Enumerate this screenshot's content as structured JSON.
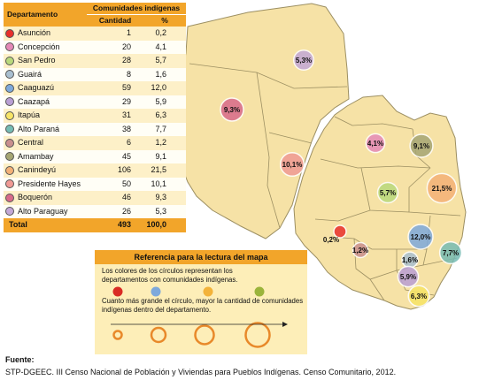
{
  "table": {
    "col_department": "Departamento",
    "col_group": "Comunidades indígenas",
    "col_quantity": "Cantidad",
    "col_percent": "%",
    "rows": [
      {
        "name": "Asunción",
        "cantidad": "1",
        "pct": "0,2",
        "color": "#e8302b"
      },
      {
        "name": "Concepción",
        "cantidad": "20",
        "pct": "4,1",
        "color": "#e58ab8"
      },
      {
        "name": "San Pedro",
        "cantidad": "28",
        "pct": "5,7",
        "color": "#b9d97c"
      },
      {
        "name": "Guairá",
        "cantidad": "8",
        "pct": "1,6",
        "color": "#a9bfd0"
      },
      {
        "name": "Caaguazú",
        "cantidad": "59",
        "pct": "12,0",
        "color": "#7ea9db"
      },
      {
        "name": "Caazapá",
        "cantidad": "29",
        "pct": "5,9",
        "color": "#b99fd4"
      },
      {
        "name": "Itapúa",
        "cantidad": "31",
        "pct": "6,3",
        "color": "#f7e466"
      },
      {
        "name": "Alto Paraná",
        "cantidad": "38",
        "pct": "7,7",
        "color": "#76bcb4"
      },
      {
        "name": "Central",
        "cantidad": "6",
        "pct": "1,2",
        "color": "#c98f8e"
      },
      {
        "name": "Amambay",
        "cantidad": "45",
        "pct": "9,1",
        "color": "#a6a674"
      },
      {
        "name": "Canindeyú",
        "cantidad": "106",
        "pct": "21,5",
        "color": "#f4b177"
      },
      {
        "name": "Presidente Hayes",
        "cantidad": "50",
        "pct": "10,1",
        "color": "#f09a94"
      },
      {
        "name": "Boquerón",
        "cantidad": "46",
        "pct": "9,3",
        "color": "#d86a8a"
      },
      {
        "name": "Alto Paraguay",
        "cantidad": "26",
        "pct": "5,3",
        "color": "#c3a8d7"
      }
    ],
    "total": {
      "name": "Total",
      "cantidad": "493",
      "pct": "100,0"
    }
  },
  "map": {
    "land_color": "#f6e2a6",
    "border_color": "#9c8f62",
    "markers": [
      {
        "label": "5,3%",
        "dept": "Alto Paraguay",
        "value": 5.3,
        "color": "#c3a8d7"
      },
      {
        "label": "9,3%",
        "dept": "Boquerón",
        "value": 9.3,
        "color": "#d86a8a"
      },
      {
        "label": "10,1%",
        "dept": "Presidente Hayes",
        "value": 10.1,
        "color": "#f09a94"
      },
      {
        "label": "4,1%",
        "dept": "Concepción",
        "value": 4.1,
        "color": "#e58ab8"
      },
      {
        "label": "9,1%",
        "dept": "Amambay",
        "value": 9.1,
        "color": "#a6a674"
      },
      {
        "label": "5,7%",
        "dept": "San Pedro",
        "value": 5.7,
        "color": "#b9d97c"
      },
      {
        "label": "21,5%",
        "dept": "Canindeyú",
        "value": 21.5,
        "color": "#f4b177"
      },
      {
        "label": "12,0%",
        "dept": "Caaguazú",
        "value": 12.0,
        "color": "#7ea9db"
      },
      {
        "label": "7,7%",
        "dept": "Alto Paraná",
        "value": 7.7,
        "color": "#76bcb4"
      },
      {
        "label": "1,6%",
        "dept": "Guairá",
        "value": 1.6,
        "color": "#a9bfd0"
      },
      {
        "label": "0,2%",
        "dept": "Asunción",
        "value": 0.2,
        "color": "#e8302b"
      },
      {
        "label": "1,2%",
        "dept": "Central",
        "value": 1.2,
        "color": "#c98f8e"
      },
      {
        "label": "5,9%",
        "dept": "Caazapá",
        "value": 5.9,
        "color": "#b99fd4"
      },
      {
        "label": "6,3%",
        "dept": "Itapúa",
        "value": 6.3,
        "color": "#f7e466"
      }
    ]
  },
  "legend": {
    "title": "Referencia para la lectura del mapa",
    "text1": "Los colores de los círculos representan los departamentos con comunidades indígenas.",
    "text2": "Cuanto más grande el círculo, mayor la cantidad de comunidades indígenas dentro del departamento.",
    "example_colors": [
      "#d92b24",
      "#7ea9db",
      "#f3b33a",
      "#9bb43b"
    ],
    "size_ring_color": "#e8892a"
  },
  "source": {
    "label": "Fuente:",
    "text": "STP-DGEEC. III Censo Nacional de Población y Viviendas para Pueblos Indígenas. Censo Comunitario, 2012."
  }
}
